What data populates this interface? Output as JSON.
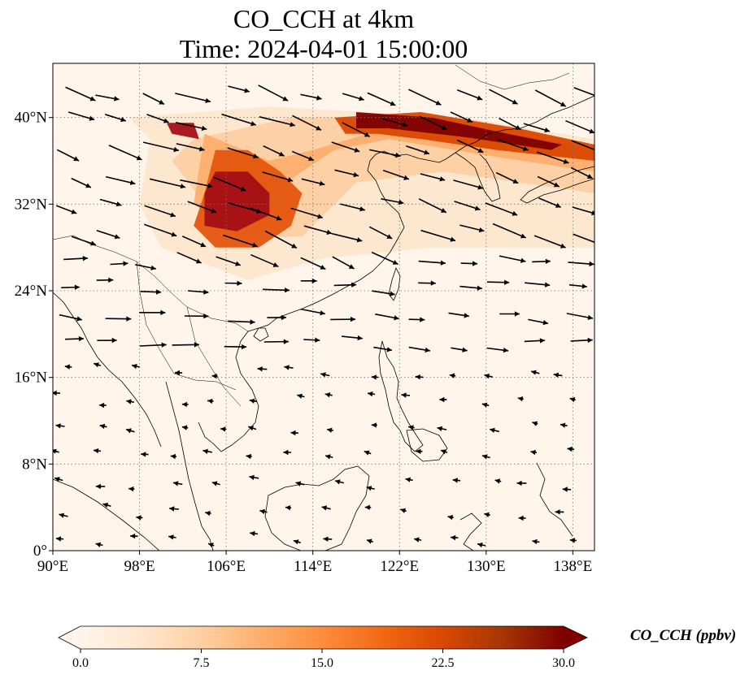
{
  "title": {
    "line1": "CO_CCH at 4km",
    "line2": "Time: 2024-04-01 15:00:00"
  },
  "map": {
    "projection": "PlateCarree",
    "lon_range": [
      90,
      140
    ],
    "lat_range": [
      0,
      45
    ],
    "lon_ticks": [
      {
        "value": 90,
        "label": "90°E"
      },
      {
        "value": 98,
        "label": "98°E"
      },
      {
        "value": 106,
        "label": "106°E"
      },
      {
        "value": 114,
        "label": "114°E"
      },
      {
        "value": 122,
        "label": "122°E"
      },
      {
        "value": 130,
        "label": "130°E"
      },
      {
        "value": 138,
        "label": "138°E"
      }
    ],
    "lat_ticks": [
      {
        "value": 0,
        "label": "0°"
      },
      {
        "value": 8,
        "label": "8°N"
      },
      {
        "value": 16,
        "label": "16°N"
      },
      {
        "value": 24,
        "label": "24°N"
      },
      {
        "value": 32,
        "label": "32°N"
      },
      {
        "value": 40,
        "label": "40°N"
      }
    ],
    "gridlines": "dotted",
    "background_color": "#fff5eb",
    "coastline_color": "#000000",
    "plumes": [
      {
        "level": "low",
        "color": "#fee6ce",
        "points": [
          [
            97,
            40
          ],
          [
            110,
            41
          ],
          [
            128,
            40
          ],
          [
            140,
            38
          ],
          [
            140,
            28
          ],
          [
            125,
            28
          ],
          [
            115,
            27
          ],
          [
            108,
            25
          ],
          [
            100,
            28
          ],
          [
            98,
            32
          ],
          [
            99,
            38
          ]
        ]
      },
      {
        "level": "low",
        "color": "#fdd0a2",
        "points": [
          [
            103,
            38
          ],
          [
            112,
            40
          ],
          [
            126,
            40
          ],
          [
            140,
            37.5
          ],
          [
            140,
            33
          ],
          [
            126,
            35
          ],
          [
            118,
            34
          ],
          [
            113,
            29
          ],
          [
            107,
            29
          ],
          [
            104,
            32
          ],
          [
            101,
            36
          ]
        ]
      },
      {
        "level": "mid",
        "color": "#fdae6b",
        "points": [
          [
            104,
            38.5
          ],
          [
            110,
            36
          ],
          [
            114,
            37
          ],
          [
            124,
            40
          ],
          [
            135,
            38
          ],
          [
            140,
            37
          ],
          [
            140,
            35
          ],
          [
            130,
            36.5
          ],
          [
            121,
            38
          ],
          [
            116,
            37
          ],
          [
            110,
            33
          ],
          [
            106,
            30
          ],
          [
            103,
            32
          ]
        ]
      },
      {
        "level": "high",
        "color": "#e6550d",
        "points": [
          [
            105,
            37
          ],
          [
            108,
            37
          ],
          [
            111,
            35
          ],
          [
            113,
            33
          ],
          [
            112,
            30
          ],
          [
            109,
            28
          ],
          [
            105,
            28
          ],
          [
            103,
            30
          ],
          [
            104,
            33
          ]
        ]
      },
      {
        "level": "high",
        "color": "#d94801",
        "points": [
          [
            116,
            40
          ],
          [
            124,
            40.5
          ],
          [
            133,
            39
          ],
          [
            140,
            37.5
          ],
          [
            140,
            36
          ],
          [
            131,
            37
          ],
          [
            124,
            38
          ],
          [
            120,
            38.5
          ],
          [
            117,
            38.5
          ]
        ]
      },
      {
        "level": "max",
        "color": "#a50f15",
        "points": [
          [
            105,
            35
          ],
          [
            108,
            35
          ],
          [
            110,
            33
          ],
          [
            110,
            31
          ],
          [
            107,
            29.5
          ],
          [
            104,
            30
          ],
          [
            104,
            33
          ]
        ]
      },
      {
        "level": "max",
        "color": "#7f0000",
        "points": [
          [
            118,
            40.5
          ],
          [
            125,
            40
          ],
          [
            132,
            38.5
          ],
          [
            137,
            37.5
          ],
          [
            136,
            37
          ],
          [
            128,
            38.2
          ],
          [
            121,
            39
          ],
          [
            118,
            39
          ]
        ]
      },
      {
        "level": "max",
        "color": "#a50f15",
        "points": [
          [
            100.5,
            39.5
          ],
          [
            103,
            39.5
          ],
          [
            103.5,
            38
          ],
          [
            101,
            38.5
          ]
        ]
      }
    ],
    "wind_region_bands": [
      {
        "lat_min": 27,
        "lat_max": 45,
        "u": 1.0,
        "v": -0.35,
        "strength": "strong"
      },
      {
        "lat_min": 18,
        "lat_max": 27,
        "u": 1.0,
        "v": -0.08,
        "strength": "moderate"
      },
      {
        "lat_min": 0,
        "lat_max": 18,
        "u": -0.9,
        "v": 0.15,
        "strength": "weak"
      }
    ]
  },
  "colorbar": {
    "label": "CO_CCH (ppbv)",
    "min": 0.0,
    "max": 30.0,
    "ticks": [
      {
        "value": 0.0,
        "label": "0.0"
      },
      {
        "value": 7.5,
        "label": "7.5"
      },
      {
        "value": 15.0,
        "label": "15.0"
      },
      {
        "value": 22.5,
        "label": "22.5"
      },
      {
        "value": 30.0,
        "label": "30.0"
      }
    ],
    "colormap": "OrRd",
    "stops": [
      "#fff5eb",
      "#fee6ce",
      "#fdd0a2",
      "#fdae6b",
      "#fd8d3c",
      "#f16913",
      "#d94801",
      "#a63603",
      "#7f0000"
    ],
    "extend": "both"
  }
}
